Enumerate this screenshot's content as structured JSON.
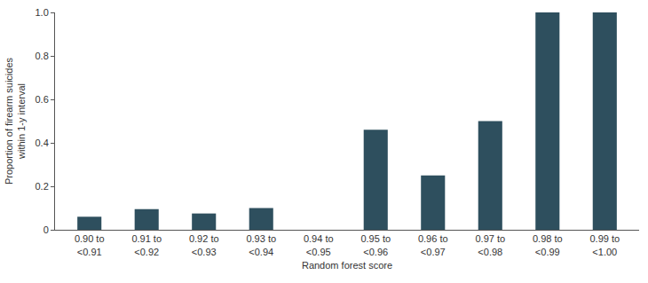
{
  "chart_data": {
    "type": "bar",
    "x_label": "Random forest score",
    "y_label": "Proportion of firearm suicides within 1-y interval",
    "categories": [
      "0.90 to <0.91",
      "0.91 to <0.92",
      "0.92 to <0.93",
      "0.93 to <0.94",
      "0.94 to <0.95",
      "0.95 to <0.96",
      "0.96 to <0.97",
      "0.97 to <0.98",
      "0.98 to <0.99",
      "0.99 to <1.00"
    ],
    "values": [
      0.06,
      0.095,
      0.075,
      0.1,
      0,
      0.46,
      0.25,
      0.5,
      1,
      1
    ],
    "color": "#2e4f5e",
    "ylim": [
      0,
      1
    ],
    "yticks": [
      0,
      0.2,
      0.4,
      0.6,
      0.8,
      {
        "value": 1,
        "label": "1.0"
      }
    ],
    "grid": false
  }
}
